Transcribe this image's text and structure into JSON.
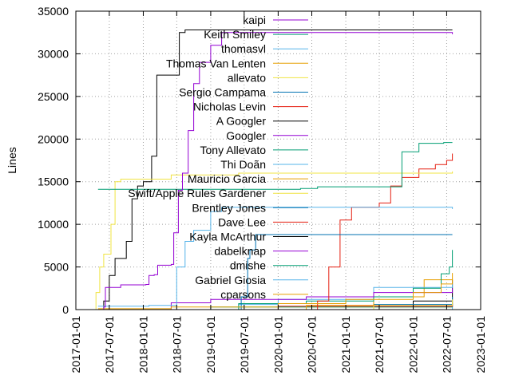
{
  "chart_data": {
    "type": "line",
    "title": "",
    "xlabel": "",
    "ylabel": "Lines",
    "x_axis": {
      "type": "date",
      "min": "2017-01-01",
      "max": "2023-01-01",
      "ticks": [
        "2017-01-01",
        "2017-07-01",
        "2018-01-01",
        "2018-07-01",
        "2019-01-01",
        "2019-07-01",
        "2020-01-01",
        "2020-07-01",
        "2021-01-01",
        "2021-07-01",
        "2022-01-01",
        "2022-07-01",
        "2023-01-01"
      ]
    },
    "y_axis": {
      "min": 0,
      "max": 35000,
      "ticks": [
        0,
        5000,
        10000,
        15000,
        20000,
        25000,
        30000,
        35000
      ],
      "tick_labels": [
        "0",
        "5000",
        "10000",
        "15000",
        "20000",
        "25000",
        "30000",
        "35000"
      ]
    },
    "grid": true,
    "legend_position": "top-right",
    "series": [
      {
        "name": "kaipi",
        "color": "#9400d3",
        "points": [
          [
            "2017-05-20",
            0
          ],
          [
            "2017-06-01",
            300
          ],
          [
            "2017-06-10",
            2600
          ],
          [
            "2017-09-01",
            2900
          ],
          [
            "2018-01-15",
            2950
          ],
          [
            "2018-02-01",
            4000
          ],
          [
            "2018-03-01",
            4100
          ],
          [
            "2018-03-20",
            5200
          ],
          [
            "2018-06-01",
            5300
          ],
          [
            "2018-06-15",
            9000
          ],
          [
            "2018-07-10",
            14000
          ],
          [
            "2018-08-01",
            16000
          ],
          [
            "2018-09-01",
            21000
          ],
          [
            "2018-10-01",
            26500
          ],
          [
            "2018-11-01",
            29000
          ],
          [
            "2019-01-01",
            31000
          ],
          [
            "2019-03-01",
            32500
          ],
          [
            "2022-08-01",
            32300
          ]
        ]
      },
      {
        "name": "Keith Smiley",
        "color": "#009e73",
        "points": [
          [
            "2017-05-01",
            14100
          ],
          [
            "2020-05-01",
            14200
          ],
          [
            "2020-08-01",
            14400
          ],
          [
            "2021-06-01",
            14400
          ],
          [
            "2021-11-01",
            18500
          ],
          [
            "2022-02-01",
            19500
          ],
          [
            "2022-06-15",
            19600
          ],
          [
            "2022-08-01",
            19600
          ]
        ]
      },
      {
        "name": "thomasvl",
        "color": "#56b4e9",
        "points": [
          [
            "2017-05-01",
            400
          ],
          [
            "2018-02-01",
            500
          ],
          [
            "2018-07-01",
            5000
          ],
          [
            "2018-08-15",
            8000
          ],
          [
            "2018-10-01",
            9300
          ],
          [
            "2019-01-01",
            11500
          ],
          [
            "2019-03-01",
            12000
          ],
          [
            "2022-08-01",
            11800
          ]
        ]
      },
      {
        "name": "Thomas Van Lenten",
        "color": "#e69f00",
        "points": [
          [
            "2017-05-01",
            100
          ],
          [
            "2018-06-01",
            300
          ],
          [
            "2020-01-01",
            700
          ],
          [
            "2021-01-01",
            1200
          ],
          [
            "2022-01-01",
            2000
          ],
          [
            "2022-06-01",
            3000
          ],
          [
            "2022-08-01",
            3600
          ]
        ]
      },
      {
        "name": "allevato",
        "color": "#f0e442",
        "points": [
          [
            "2017-03-15",
            0
          ],
          [
            "2017-04-20",
            2000
          ],
          [
            "2017-05-10",
            5000
          ],
          [
            "2017-06-01",
            6500
          ],
          [
            "2017-07-10",
            10000
          ],
          [
            "2017-08-01",
            15000
          ],
          [
            "2017-09-01",
            15300
          ],
          [
            "2018-06-01",
            15800
          ],
          [
            "2019-06-01",
            16000
          ],
          [
            "2022-08-01",
            16200
          ]
        ]
      },
      {
        "name": "Sergio Campama",
        "color": "#0072b2",
        "points": [
          [
            "2019-04-01",
            0
          ],
          [
            "2019-06-15",
            1500
          ],
          [
            "2019-07-20",
            6000
          ],
          [
            "2019-08-01",
            7000
          ],
          [
            "2019-09-01",
            8800
          ],
          [
            "2022-08-01",
            8800
          ]
        ]
      },
      {
        "name": "Nicholas Levin",
        "color": "#e51e10",
        "points": [
          [
            "2020-05-01",
            0
          ],
          [
            "2020-08-01",
            1000
          ],
          [
            "2020-10-01",
            5000
          ],
          [
            "2020-12-01",
            10500
          ],
          [
            "2021-02-01",
            12000
          ],
          [
            "2021-07-01",
            12500
          ],
          [
            "2021-09-01",
            14500
          ],
          [
            "2021-11-01",
            15500
          ],
          [
            "2022-02-01",
            16500
          ],
          [
            "2022-05-01",
            17000
          ],
          [
            "2022-07-01",
            17500
          ],
          [
            "2022-08-01",
            18300
          ]
        ]
      },
      {
        "name": "A Googler",
        "color": "#000000",
        "points": [
          [
            "2017-05-01",
            0
          ],
          [
            "2017-06-01",
            1000
          ],
          [
            "2017-07-01",
            4000
          ],
          [
            "2017-08-01",
            6000
          ],
          [
            "2017-10-01",
            8000
          ],
          [
            "2017-11-01",
            13000
          ],
          [
            "2017-12-01",
            14500
          ],
          [
            "2018-01-01",
            15000
          ],
          [
            "2018-02-15",
            18000
          ],
          [
            "2018-03-15",
            27500
          ],
          [
            "2018-06-01",
            27500
          ],
          [
            "2018-07-15",
            32500
          ],
          [
            "2018-08-15",
            32800
          ],
          [
            "2022-08-01",
            32800
          ]
        ]
      },
      {
        "name": "Googler",
        "color": "#9400d3",
        "points": [
          [
            "2017-10-01",
            0
          ],
          [
            "2018-06-01",
            800
          ],
          [
            "2019-01-01",
            1200
          ],
          [
            "2020-06-01",
            1500
          ],
          [
            "2021-06-01",
            2000
          ],
          [
            "2022-08-01",
            2500
          ]
        ]
      },
      {
        "name": "Tony Allevato",
        "color": "#009e73",
        "points": [
          [
            "2018-06-01",
            0
          ],
          [
            "2019-06-01",
            700
          ],
          [
            "2020-06-01",
            1000
          ],
          [
            "2021-06-01",
            1500
          ],
          [
            "2022-01-01",
            2500
          ],
          [
            "2022-06-01",
            4200
          ],
          [
            "2022-07-15",
            5000
          ],
          [
            "2022-08-01",
            7000
          ]
        ]
      },
      {
        "name": "Thi Doãn",
        "color": "#56b4e9",
        "points": [
          [
            "2018-06-01",
            0
          ],
          [
            "2019-06-01",
            600
          ],
          [
            "2020-01-01",
            1200
          ],
          [
            "2021-06-01",
            2600
          ],
          [
            "2022-08-01",
            3000
          ]
        ]
      },
      {
        "name": "Mauricio Garcia",
        "color": "#e69f00",
        "points": [
          [
            "2019-01-01",
            0
          ],
          [
            "2020-06-01",
            500
          ],
          [
            "2021-06-01",
            1500
          ],
          [
            "2022-03-01",
            3500
          ],
          [
            "2022-08-01",
            4300
          ]
        ]
      },
      {
        "name": "Swift/Apple Rules Gardener",
        "color": "#f0e442",
        "points": [
          [
            "2020-06-01",
            0
          ],
          [
            "2021-06-01",
            500
          ],
          [
            "2022-08-01",
            1200
          ]
        ]
      },
      {
        "name": "Brentley Jones",
        "color": "#0072b2",
        "points": [
          [
            "2020-06-01",
            0
          ],
          [
            "2021-06-01",
            600
          ],
          [
            "2022-08-01",
            1500
          ]
        ]
      },
      {
        "name": "Dave Lee",
        "color": "#e51e10",
        "points": [
          [
            "2018-01-01",
            0
          ],
          [
            "2020-01-01",
            400
          ],
          [
            "2022-08-01",
            1000
          ]
        ]
      },
      {
        "name": "Kayla McArthur",
        "color": "#000000",
        "points": [
          [
            "2021-06-01",
            0
          ],
          [
            "2022-01-01",
            1000
          ],
          [
            "2022-08-01",
            3500
          ]
        ]
      },
      {
        "name": "dabelknap",
        "color": "#9400d3",
        "points": [
          [
            "2020-06-01",
            0
          ],
          [
            "2021-06-01",
            400
          ],
          [
            "2022-08-01",
            900
          ]
        ]
      },
      {
        "name": "dmishe",
        "color": "#009e73",
        "points": [
          [
            "2017-06-01",
            0
          ],
          [
            "2019-01-01",
            300
          ],
          [
            "2022-08-01",
            700
          ]
        ]
      },
      {
        "name": "Gabriel Giosia",
        "color": "#56b4e9",
        "points": [
          [
            "2021-06-01",
            0
          ],
          [
            "2022-08-01",
            600
          ]
        ]
      },
      {
        "name": "cparsons",
        "color": "#e69f00",
        "points": [
          [
            "2017-06-01",
            0
          ],
          [
            "2020-01-01",
            300
          ],
          [
            "2022-08-01",
            500
          ]
        ]
      }
    ]
  }
}
